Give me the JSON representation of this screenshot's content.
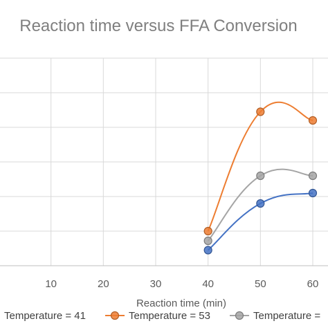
{
  "chart_data": {
    "type": "scatter",
    "title": "Reaction time versus FFA Conversion",
    "xlabel": "Reaction time (min)",
    "ylabel": "",
    "xlim": [
      0,
      60
    ],
    "x_ticks": [
      10,
      20,
      30,
      40,
      50,
      60
    ],
    "ylim": [
      0,
      6
    ],
    "y_gridlines": 6,
    "grid": true,
    "smooth_lines": true,
    "legend_position": "bottom",
    "series": [
      {
        "name": "Temperature = 41",
        "color": "#4472c4",
        "x": [
          40,
          50,
          60
        ],
        "y": [
          0.45,
          1.8,
          2.1
        ]
      },
      {
        "name": "Temperature = 53",
        "color": "#ed7d31",
        "x": [
          40,
          50,
          60
        ],
        "y": [
          1.0,
          4.45,
          4.2
        ]
      },
      {
        "name": "Temperature = ",
        "color": "#a5a5a5",
        "x": [
          40,
          50,
          60
        ],
        "y": [
          0.72,
          2.6,
          2.6
        ]
      }
    ]
  }
}
